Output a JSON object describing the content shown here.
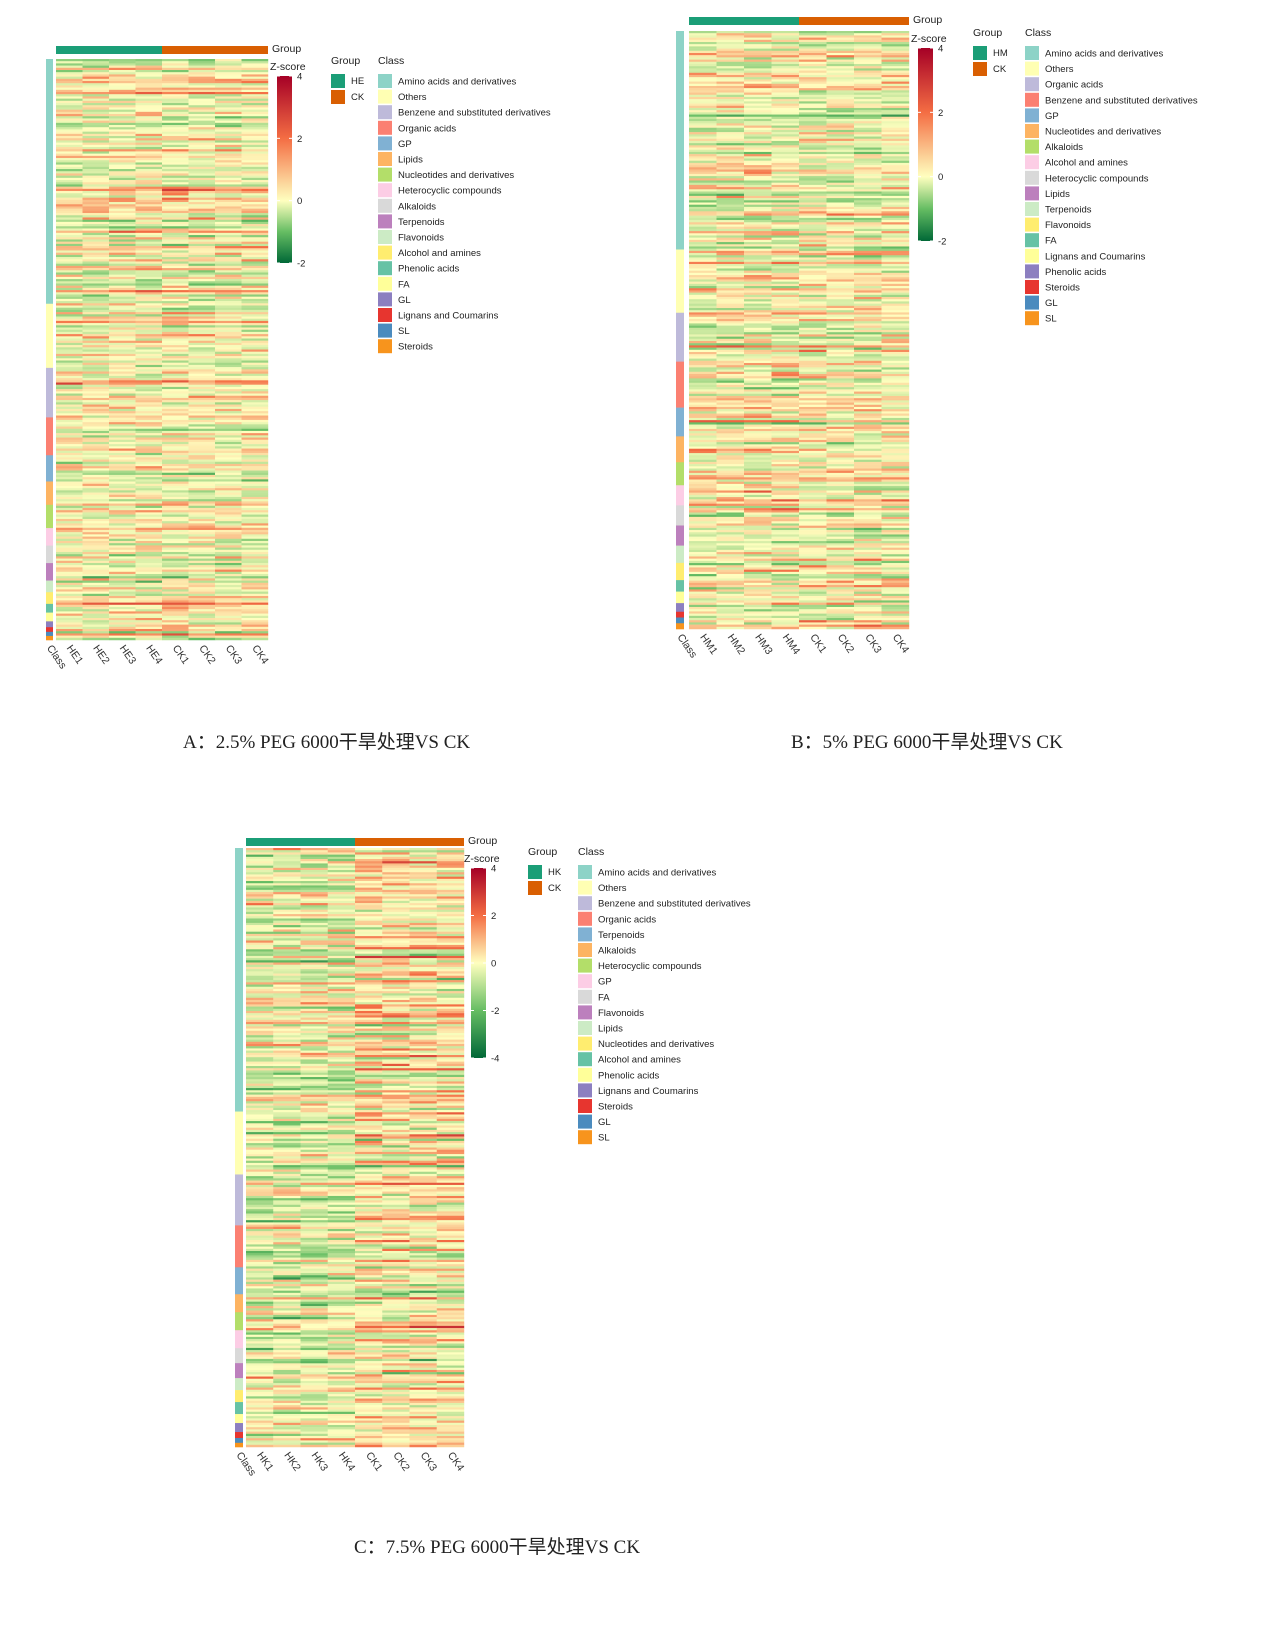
{
  "chart_data": [
    {
      "type": "heatmap",
      "caption": "A：2.5% PEG 6000干旱处理VS CK",
      "columns": [
        "Class",
        "HE1",
        "HE2",
        "HE3",
        "HE4",
        "CK1",
        "CK2",
        "CK3",
        "CK4"
      ],
      "group_title": "Group",
      "groups": [
        {
          "name": "HE",
          "color": "#1b9e77",
          "columns": [
            "HE1",
            "HE2",
            "HE3",
            "HE4"
          ]
        },
        {
          "name": "CK",
          "color": "#d95f02",
          "columns": [
            "CK1",
            "CK2",
            "CK3",
            "CK4"
          ]
        }
      ],
      "zscore_title": "Z-score",
      "zscore_range": [
        -2,
        4
      ],
      "zscore_ticks": [
        "4",
        "2",
        "0",
        "-2"
      ],
      "class_title": "Class",
      "classes": [
        {
          "name": "Amino acids and derivatives",
          "color": "#8dd3c7",
          "share": 0.42
        },
        {
          "name": "Others",
          "color": "#ffffb3",
          "share": 0.11
        },
        {
          "name": "Benzene and substituted derivatives",
          "color": "#bebada",
          "share": 0.085
        },
        {
          "name": "Organic acids",
          "color": "#fb8072",
          "share": 0.065
        },
        {
          "name": "GP",
          "color": "#80b1d3",
          "share": 0.045
        },
        {
          "name": "Lipids",
          "color": "#fdb462",
          "share": 0.04
        },
        {
          "name": "Nucleotides and derivatives",
          "color": "#b3de69",
          "share": 0.04
        },
        {
          "name": "Heterocyclic compounds",
          "color": "#fccde5",
          "share": 0.03
        },
        {
          "name": "Alkaloids",
          "color": "#d9d9d9",
          "share": 0.03
        },
        {
          "name": "Terpenoids",
          "color": "#bc80bd",
          "share": 0.03
        },
        {
          "name": "Flavonoids",
          "color": "#ccebc5",
          "share": 0.02
        },
        {
          "name": "Alcohol and amines",
          "color": "#ffed6f",
          "share": 0.02
        },
        {
          "name": "Phenolic acids",
          "color": "#66c2a5",
          "share": 0.015
        },
        {
          "name": "FA",
          "color": "#ffff99",
          "share": 0.015
        },
        {
          "name": "GL",
          "color": "#8c7fc0",
          "share": 0.01
        },
        {
          "name": "Lignans and Coumarins",
          "color": "#e7352f",
          "share": 0.008
        },
        {
          "name": "SL",
          "color": "#4b8bbe",
          "share": 0.007
        },
        {
          "name": "Steroids",
          "color": "#f7941d",
          "share": 0.007
        }
      ]
    },
    {
      "type": "heatmap",
      "caption": "B：5% PEG 6000干旱处理VS CK",
      "columns": [
        "Class",
        "HM1",
        "HM2",
        "HM3",
        "HM4",
        "CK1",
        "CK2",
        "CK3",
        "CK4"
      ],
      "group_title": "Group",
      "groups": [
        {
          "name": "HM",
          "color": "#1b9e77",
          "columns": [
            "HM1",
            "HM2",
            "HM3",
            "HM4"
          ]
        },
        {
          "name": "CK",
          "color": "#d95f02",
          "columns": [
            "CK1",
            "CK2",
            "CK3",
            "CK4"
          ]
        }
      ],
      "zscore_title": "Z-score",
      "zscore_range": [
        -2,
        4
      ],
      "zscore_ticks": [
        "4",
        "2",
        "0",
        "-2"
      ],
      "class_title": "Class",
      "classes": [
        {
          "name": "Amino acids and derivatives",
          "color": "#8dd3c7",
          "share": 0.38
        },
        {
          "name": "Others",
          "color": "#ffffb3",
          "share": 0.11
        },
        {
          "name": "Organic acids",
          "color": "#bebada",
          "share": 0.085
        },
        {
          "name": "Benzene and substituted derivatives",
          "color": "#fb8072",
          "share": 0.08
        },
        {
          "name": "GP",
          "color": "#80b1d3",
          "share": 0.05
        },
        {
          "name": "Nucleotides and derivatives",
          "color": "#fdb462",
          "share": 0.045
        },
        {
          "name": "Alkaloids",
          "color": "#b3de69",
          "share": 0.04
        },
        {
          "name": "Alcohol and amines",
          "color": "#fccde5",
          "share": 0.035
        },
        {
          "name": "Heterocyclic compounds",
          "color": "#d9d9d9",
          "share": 0.035
        },
        {
          "name": "Lipids",
          "color": "#bc80bd",
          "share": 0.035
        },
        {
          "name": "Terpenoids",
          "color": "#ccebc5",
          "share": 0.03
        },
        {
          "name": "Flavonoids",
          "color": "#ffed6f",
          "share": 0.03
        },
        {
          "name": "FA",
          "color": "#66c2a5",
          "share": 0.02
        },
        {
          "name": "Lignans and Coumarins",
          "color": "#ffff99",
          "share": 0.02
        },
        {
          "name": "Phenolic acids",
          "color": "#8c7fc0",
          "share": 0.015
        },
        {
          "name": "Steroids",
          "color": "#e7352f",
          "share": 0.01
        },
        {
          "name": "GL",
          "color": "#4b8bbe",
          "share": 0.01
        },
        {
          "name": "SL",
          "color": "#f7941d",
          "share": 0.01
        }
      ]
    },
    {
      "type": "heatmap",
      "caption": "C：7.5% PEG 6000干旱处理VS CK",
      "columns": [
        "Class",
        "HK1",
        "HK2",
        "HK3",
        "HK4",
        "CK1",
        "CK2",
        "CK3",
        "CK4"
      ],
      "group_title": "Group",
      "groups": [
        {
          "name": "HK",
          "color": "#1b9e77",
          "columns": [
            "HK1",
            "HK2",
            "HK3",
            "HK4"
          ]
        },
        {
          "name": "CK",
          "color": "#d95f02",
          "columns": [
            "CK1",
            "CK2",
            "CK3",
            "CK4"
          ]
        }
      ],
      "zscore_title": "Z-score",
      "zscore_range": [
        -4,
        4
      ],
      "zscore_ticks": [
        "4",
        "2",
        "0",
        "-2",
        "-4"
      ],
      "class_title": "Class",
      "classes": [
        {
          "name": "Amino acids and derivatives",
          "color": "#8dd3c7",
          "share": 0.44
        },
        {
          "name": "Others",
          "color": "#ffffb3",
          "share": 0.105
        },
        {
          "name": "Benzene and substituted derivatives",
          "color": "#bebada",
          "share": 0.085
        },
        {
          "name": "Organic acids",
          "color": "#fb8072",
          "share": 0.07
        },
        {
          "name": "Terpenoids",
          "color": "#80b1d3",
          "share": 0.045
        },
        {
          "name": "Alkaloids",
          "color": "#fdb462",
          "share": 0.03
        },
        {
          "name": "Heterocyclic compounds",
          "color": "#b3de69",
          "share": 0.03
        },
        {
          "name": "GP",
          "color": "#fccde5",
          "share": 0.03
        },
        {
          "name": "FA",
          "color": "#d9d9d9",
          "share": 0.025
        },
        {
          "name": "Flavonoids",
          "color": "#bc80bd",
          "share": 0.025
        },
        {
          "name": "Lipids",
          "color": "#ccebc5",
          "share": 0.02
        },
        {
          "name": "Nucleotides and derivatives",
          "color": "#ffed6f",
          "share": 0.02
        },
        {
          "name": "Alcohol and amines",
          "color": "#66c2a5",
          "share": 0.02
        },
        {
          "name": "Phenolic acids",
          "color": "#ffff99",
          "share": 0.015
        },
        {
          "name": "Lignans and Coumarins",
          "color": "#8c7fc0",
          "share": 0.015
        },
        {
          "name": "Steroids",
          "color": "#e7352f",
          "share": 0.01
        },
        {
          "name": "GL",
          "color": "#4b8bbe",
          "share": 0.008
        },
        {
          "name": "SL",
          "color": "#f7941d",
          "share": 0.007
        }
      ]
    }
  ]
}
